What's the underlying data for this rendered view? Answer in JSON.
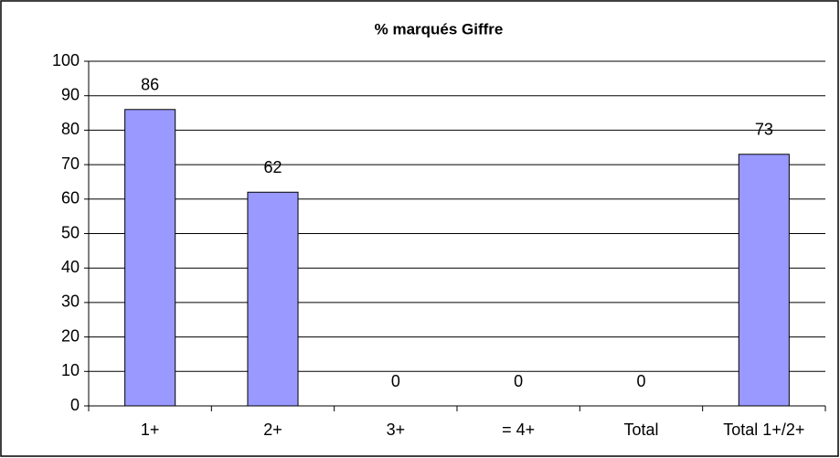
{
  "chart_data": {
    "type": "bar",
    "title": "% marqués Giffre",
    "categories": [
      "1+",
      "2+",
      "3+",
      "= 4+",
      "Total",
      "Total 1+/2+"
    ],
    "values": [
      86,
      62,
      0,
      0,
      0,
      73
    ],
    "color": "#9999ff",
    "ylim": [
      0,
      100
    ],
    "yticks": [
      0,
      10,
      20,
      30,
      40,
      50,
      60,
      70,
      80,
      90,
      100
    ],
    "grid": true
  }
}
